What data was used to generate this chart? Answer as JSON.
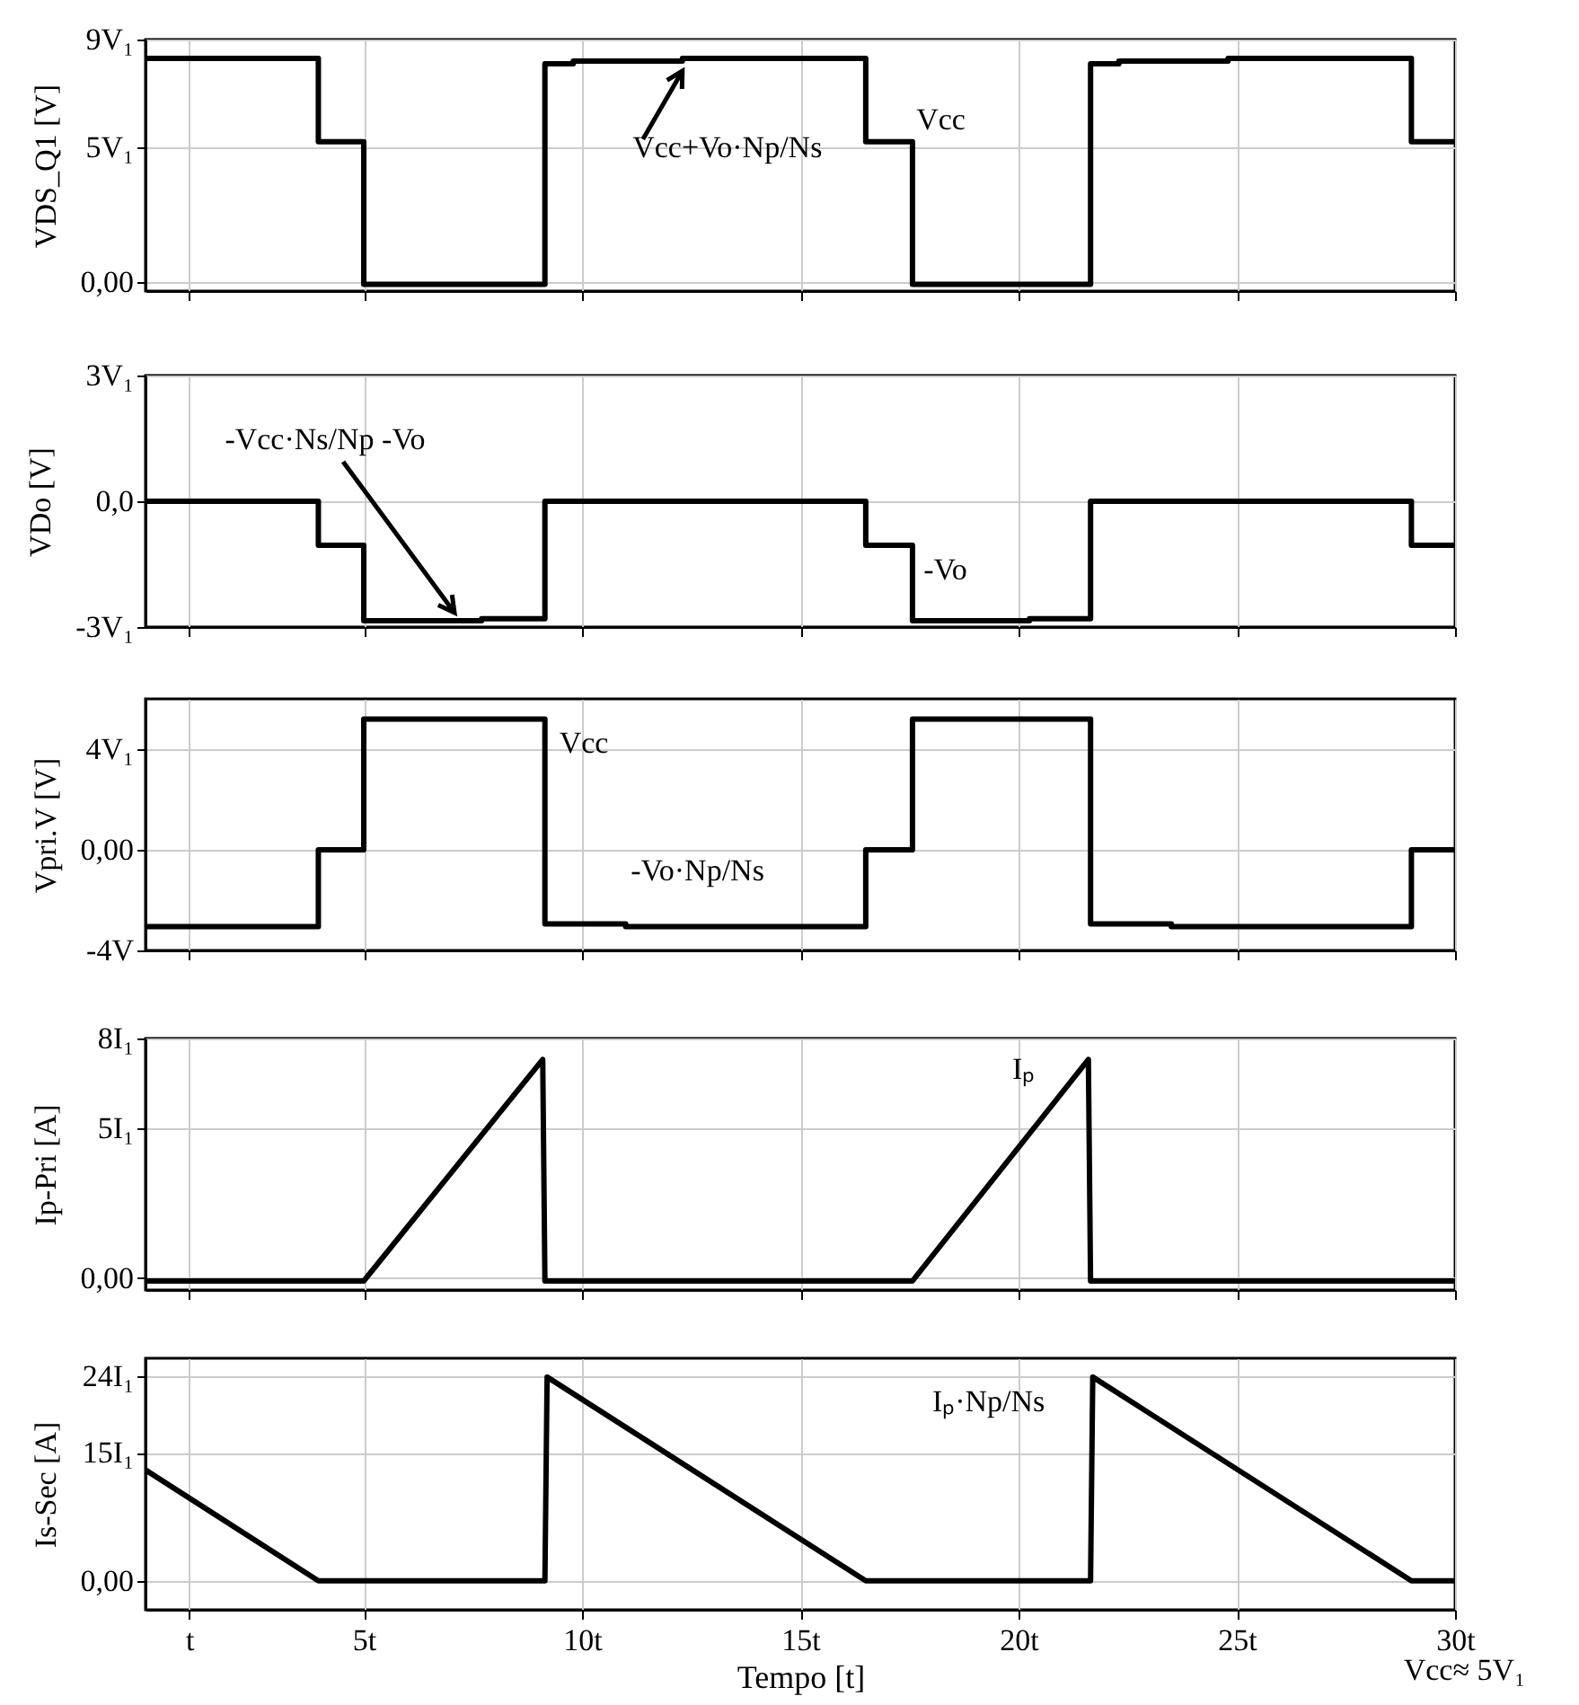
{
  "chart_data": [
    {
      "type": "line",
      "ylabel": "VDS_Q1 [V]",
      "xlim": [
        0,
        30
      ],
      "ylim": [
        -0.35,
        9
      ],
      "grid": true,
      "tick_labels": "y",
      "xticks": [
        {
          "value": 1,
          "label": null
        },
        {
          "value": 5,
          "label": null
        },
        {
          "value": 10,
          "label": null
        },
        {
          "value": 15,
          "label": null
        },
        {
          "value": 20,
          "label": null
        },
        {
          "value": 25,
          "label": null
        },
        {
          "value": 30,
          "label": null
        }
      ],
      "yticks": [
        {
          "value": 0,
          "label": "0,00"
        },
        {
          "value": 5,
          "label": "5V₁"
        },
        {
          "value": 9,
          "label": "9V₁"
        }
      ],
      "x": [
        0,
        3.96,
        3.96,
        5.0,
        5.0,
        9.15,
        9.15,
        9.8,
        9.8,
        12.3,
        12.3,
        16.5,
        16.5,
        17.57,
        17.57,
        21.65,
        21.65,
        22.3,
        22.3,
        24.8,
        24.8,
        29.0,
        29.0,
        30
      ],
      "series": [
        {
          "color": "#000000",
          "values": [
            8.3,
            8.3,
            5.2,
            5.2,
            -0.1,
            -0.1,
            8.1,
            8.1,
            8.2,
            8.2,
            8.3,
            8.3,
            5.2,
            5.2,
            -0.1,
            -0.1,
            8.1,
            8.1,
            8.2,
            8.2,
            8.3,
            8.3,
            5.2,
            5.2
          ]
        }
      ],
      "annotations": [
        {
          "text": "Vcc+Vo·Np/Ns",
          "x": 12.3,
          "y": 8.3
        },
        {
          "text": "Vcc",
          "x": 17,
          "y": 5.2
        }
      ]
    },
    {
      "type": "line",
      "ylabel": "VDo [V]",
      "xlim": [
        0,
        30
      ],
      "ylim": [
        -3,
        3
      ],
      "grid": true,
      "tick_labels": "y",
      "xticks": [
        {
          "value": 1,
          "label": null
        },
        {
          "value": 5,
          "label": null
        },
        {
          "value": 10,
          "label": null
        },
        {
          "value": 15,
          "label": null
        },
        {
          "value": 20,
          "label": null
        },
        {
          "value": 25,
          "label": null
        },
        {
          "value": 30,
          "label": null
        }
      ],
      "yticks": [
        {
          "value": -3,
          "label": "-3V₁"
        },
        {
          "value": 0,
          "label": "0,0"
        },
        {
          "value": 3,
          "label": "3V₁"
        }
      ],
      "x": [
        0,
        3.96,
        3.96,
        5.0,
        5.0,
        7.7,
        7.7,
        9.15,
        9.15,
        16.5,
        16.5,
        17.57,
        17.57,
        20.25,
        20.25,
        21.65,
        21.65,
        29.0,
        29.0,
        30
      ],
      "series": [
        {
          "color": "#000000",
          "values": [
            0,
            0,
            -1.05,
            -1.05,
            -2.85,
            -2.85,
            -2.8,
            -2.8,
            0,
            0,
            -1.05,
            -1.05,
            -2.85,
            -2.85,
            -2.8,
            -2.8,
            0,
            0,
            -1.05,
            -1.05
          ]
        }
      ],
      "annotations": [
        "-Vcc·Ns/Np -Vo",
        {
          "text": "-Vo",
          "x": 17,
          "y": -1.05
        }
      ]
    },
    {
      "type": "line",
      "ylabel": "Vpri.V [V]",
      "xlim": [
        0,
        30
      ],
      "ylim": [
        -4,
        6
      ],
      "grid": true,
      "tick_labels": "y",
      "xticks": [
        {
          "value": 1,
          "label": null
        },
        {
          "value": 5,
          "label": null
        },
        {
          "value": 10,
          "label": null
        },
        {
          "value": 15,
          "label": null
        },
        {
          "value": 20,
          "label": null
        },
        {
          "value": 25,
          "label": null
        },
        {
          "value": 30,
          "label": null
        }
      ],
      "yticks": [
        {
          "value": -4,
          "label": "-4V"
        },
        {
          "value": 0,
          "label": "0,00"
        },
        {
          "value": 4,
          "label": "4V₁"
        }
      ],
      "x": [
        0,
        3.96,
        3.96,
        5.0,
        5.0,
        9.15,
        9.15,
        11.0,
        11.0,
        16.5,
        16.5,
        17.57,
        17.57,
        21.65,
        21.65,
        23.5,
        23.5,
        29.0,
        29.0,
        30
      ],
      "series": [
        {
          "color": "#000000",
          "values": [
            -3.05,
            -3.05,
            0,
            0,
            5.2,
            5.2,
            -2.95,
            -2.95,
            -3.05,
            -3.05,
            0,
            0,
            5.2,
            5.2,
            -2.95,
            -2.95,
            -3.05,
            -3.05,
            0,
            0
          ]
        }
      ],
      "annotations": [
        {
          "text": "Vcc",
          "x": 9.15,
          "y": 5.2
        },
        {
          "text": "-Vo·Np/Ns",
          "x": 11,
          "y": -3.0
        }
      ]
    },
    {
      "type": "line",
      "ylabel": "Ip-Pri [A]",
      "xlim": [
        0,
        30
      ],
      "ylim": [
        -0.4,
        8
      ],
      "grid": true,
      "tick_labels": "y",
      "xticks": [
        {
          "value": 1,
          "label": null
        },
        {
          "value": 5,
          "label": null
        },
        {
          "value": 10,
          "label": null
        },
        {
          "value": 15,
          "label": null
        },
        {
          "value": 20,
          "label": null
        },
        {
          "value": 25,
          "label": null
        },
        {
          "value": 30,
          "label": null
        }
      ],
      "yticks": [
        {
          "value": 0,
          "label": "0,00"
        },
        {
          "value": 5,
          "label": "5I₁"
        },
        {
          "value": 8,
          "label": "8I₁"
        }
      ],
      "x": [
        0,
        5.0,
        9.1,
        9.15,
        17.57,
        21.6,
        21.65,
        30
      ],
      "series": [
        {
          "color": "#000000",
          "values": [
            -0.1,
            -0.1,
            7.3,
            -0.1,
            -0.1,
            7.3,
            -0.1,
            -0.1
          ]
        }
      ],
      "annotations": [
        {
          "text": "Iₚ",
          "x": 21.6,
          "y": 7.3
        }
      ]
    },
    {
      "type": "line",
      "ylabel": "Is-Sec [A]",
      "xlabel": "Tempo [t]",
      "xlim": [
        0,
        30
      ],
      "ylim": [
        -3.4,
        26.1
      ],
      "grid": true,
      "xticks": [
        {
          "value": 1,
          "label": "t"
        },
        {
          "value": 5,
          "label": "5t"
        },
        {
          "value": 10,
          "label": "10t"
        },
        {
          "value": 15,
          "label": "15t"
        },
        {
          "value": 20,
          "label": "20t"
        },
        {
          "value": 25,
          "label": "25t"
        },
        {
          "value": 30,
          "label": "30t"
        }
      ],
      "yticks": [
        {
          "value": 0,
          "label": "0,00"
        },
        {
          "value": 15,
          "label": "15I₁"
        },
        {
          "value": 24,
          "label": "24I₁"
        }
      ],
      "x": [
        0,
        3.96,
        9.15,
        9.2,
        16.5,
        21.65,
        21.7,
        29.0,
        30
      ],
      "series": [
        {
          "color": "#000000",
          "values": [
            13.0,
            0,
            0,
            23.9,
            0,
            0,
            23.9,
            0,
            0
          ]
        }
      ],
      "annotations": [
        {
          "text": "Iₚ·Np/Ns",
          "x": 21.7,
          "y": 23.9
        },
        "Vcc≈ 5V₁"
      ]
    }
  ]
}
